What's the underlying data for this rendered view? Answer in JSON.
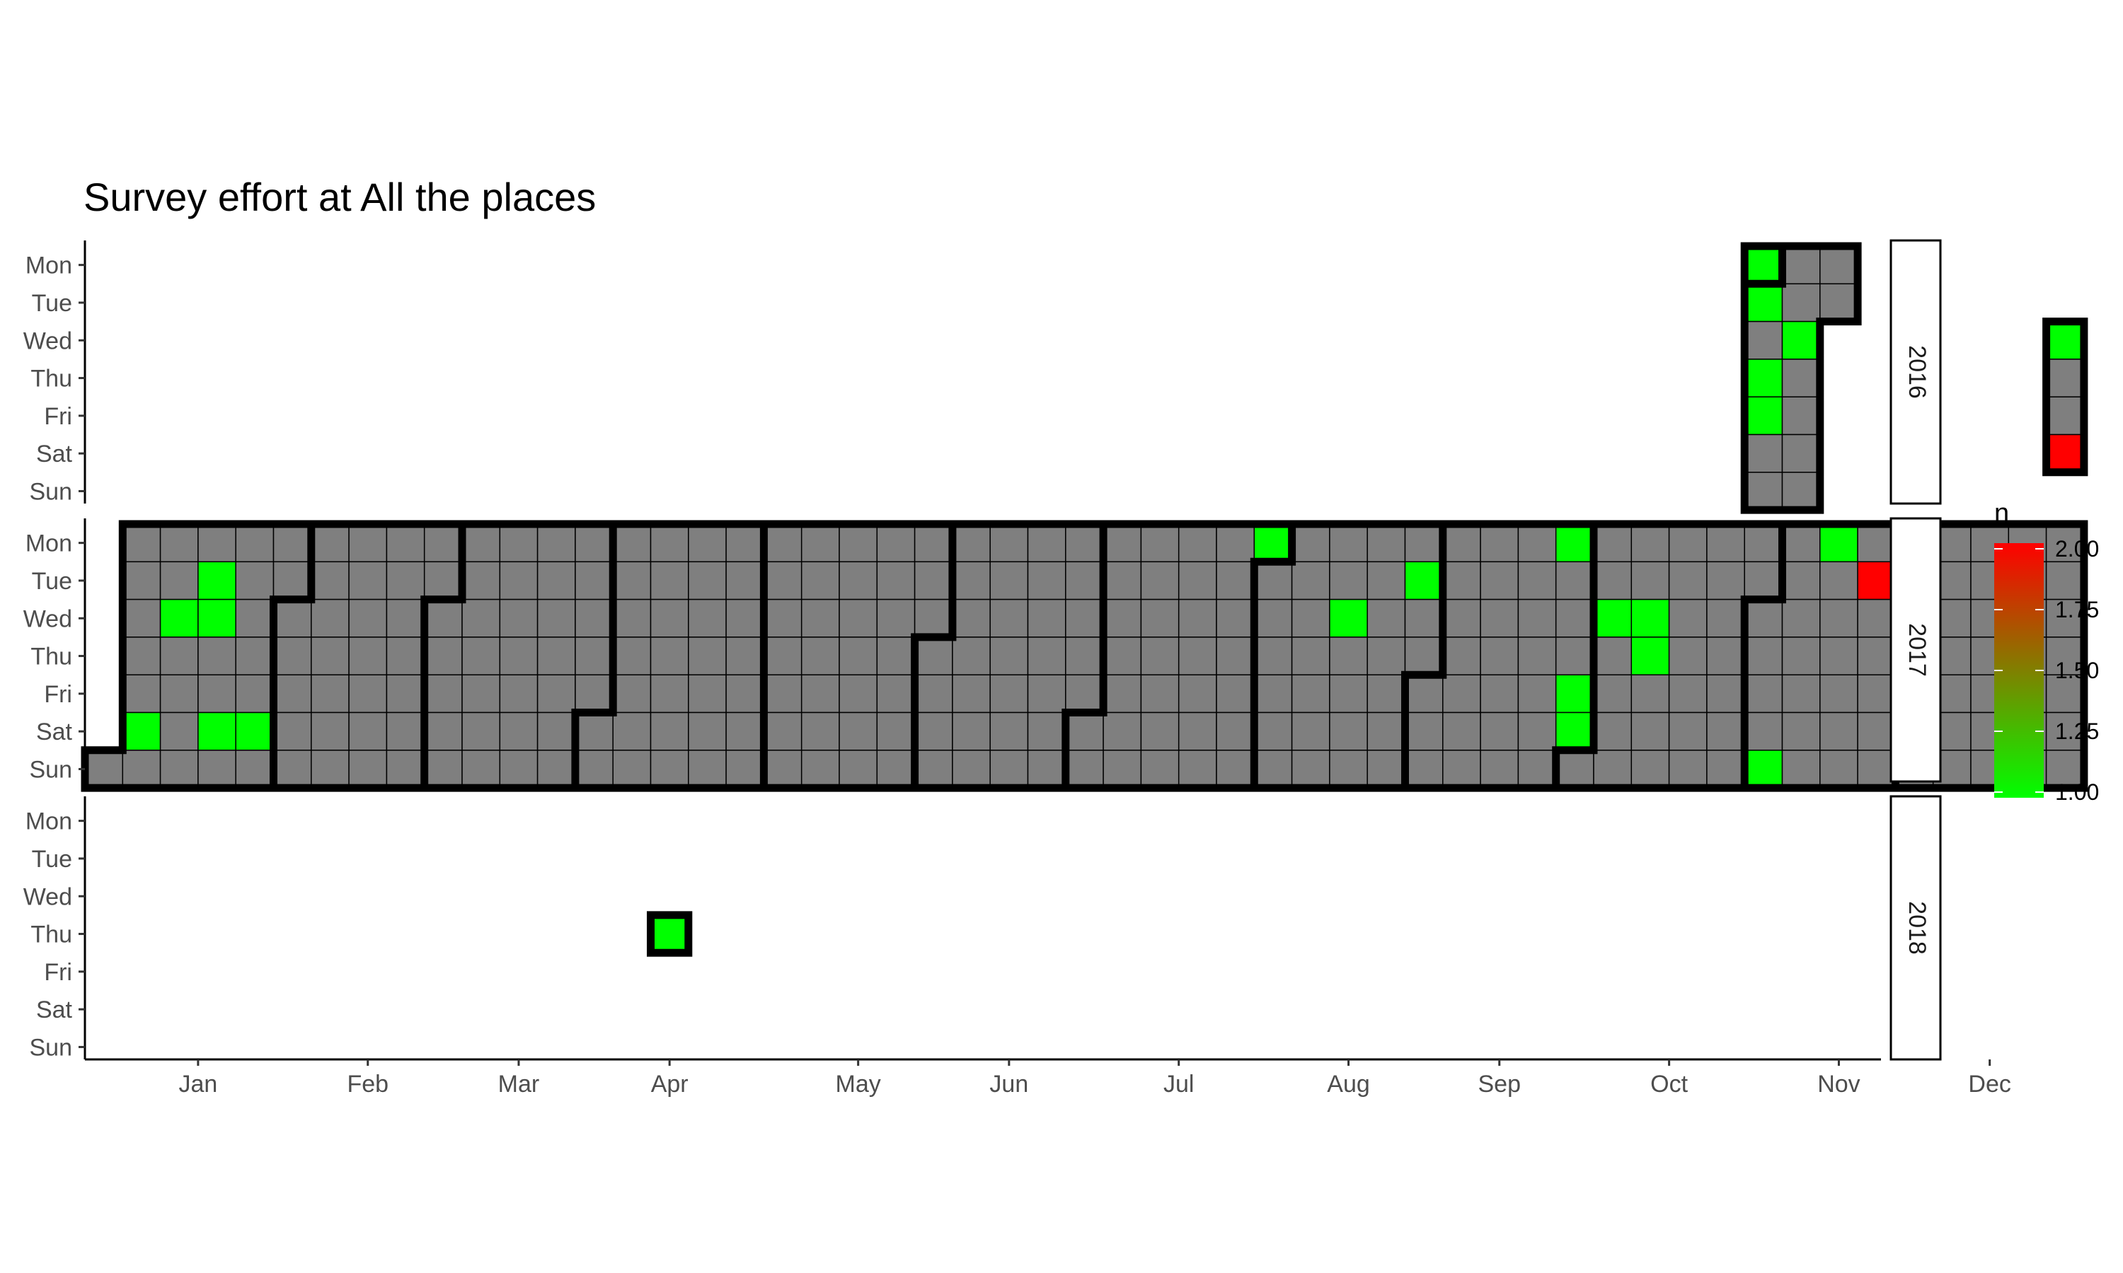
{
  "chart_data": {
    "type": "heatmap",
    "title": "Survey effort at All the places",
    "weekdays": [
      "Mon",
      "Tue",
      "Wed",
      "Thu",
      "Fri",
      "Sat",
      "Sun"
    ],
    "months": [
      "Jan",
      "Feb",
      "Mar",
      "Apr",
      "May",
      "Jun",
      "Jul",
      "Aug",
      "Sep",
      "Oct",
      "Nov",
      "Dec"
    ],
    "facets": [
      "2016",
      "2017",
      "2018"
    ],
    "legend": {
      "title": "n",
      "range": [
        1.0,
        2.0
      ],
      "ticks": [
        "1.00",
        "1.25",
        "1.50",
        "1.75",
        "2.00"
      ],
      "low_color": "#00ff00",
      "high_color": "#ff0000"
    },
    "colors": {
      "zero_fill": "#7f7f7f",
      "tile_border": "#000000",
      "month_outline": "#000000"
    },
    "value_encoding": "dates not listed have n = 0 (grey tile); tiles exist only for surveyed date ranges",
    "covered_ranges": [
      {
        "start": "2016-10-31",
        "end": "2016-11-15"
      },
      {
        "start": "2016-12-28",
        "end": "2016-12-31"
      },
      {
        "start": "2017-01-01",
        "end": "2017-12-31"
      },
      {
        "start": "2018-04-19",
        "end": "2018-04-19"
      }
    ],
    "values": [
      {
        "date": "2016-10-31",
        "n": 1
      },
      {
        "date": "2016-11-01",
        "n": 1
      },
      {
        "date": "2016-11-03",
        "n": 1
      },
      {
        "date": "2016-11-04",
        "n": 1
      },
      {
        "date": "2016-11-09",
        "n": 1
      },
      {
        "date": "2016-12-28",
        "n": 1
      },
      {
        "date": "2016-12-31",
        "n": 2
      },
      {
        "date": "2017-01-07",
        "n": 1
      },
      {
        "date": "2017-01-11",
        "n": 1
      },
      {
        "date": "2017-01-17",
        "n": 1
      },
      {
        "date": "2017-01-18",
        "n": 1
      },
      {
        "date": "2017-01-21",
        "n": 1
      },
      {
        "date": "2017-01-28",
        "n": 1
      },
      {
        "date": "2017-07-31",
        "n": 1
      },
      {
        "date": "2017-08-16",
        "n": 1
      },
      {
        "date": "2017-08-29",
        "n": 1
      },
      {
        "date": "2017-09-25",
        "n": 1
      },
      {
        "date": "2017-09-29",
        "n": 1
      },
      {
        "date": "2017-09-30",
        "n": 1
      },
      {
        "date": "2017-10-04",
        "n": 1
      },
      {
        "date": "2017-10-11",
        "n": 1
      },
      {
        "date": "2017-10-12",
        "n": 1
      },
      {
        "date": "2017-11-05",
        "n": 1
      },
      {
        "date": "2017-11-13",
        "n": 1
      },
      {
        "date": "2017-11-21",
        "n": 2
      },
      {
        "date": "2018-04-19",
        "n": 1
      }
    ]
  }
}
